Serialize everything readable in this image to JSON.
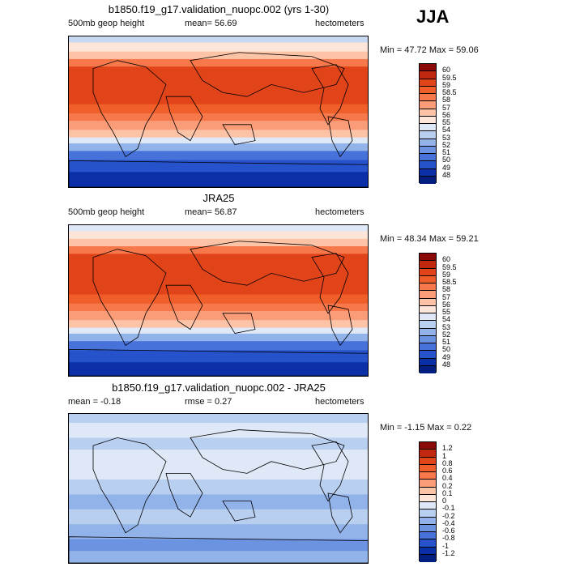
{
  "season": "JJA",
  "chart_data": [
    {
      "type": "heatmap",
      "title": "b1850.f19_g17.validation_nuopc.002 (yrs 1-30)",
      "left_label": "500mb geop height",
      "mean_label": "mean=  56.69",
      "units": "hectometers",
      "minmax": "Min =  47.72 Max =  59.06",
      "min": 47.72,
      "max": 59.06,
      "mean": 56.69,
      "levels": [
        "60",
        "59.5",
        "59",
        "58.5",
        "58",
        "57",
        "56",
        "55",
        "54",
        "53",
        "52",
        "51",
        "50",
        "49",
        "48"
      ],
      "colors": [
        "#8a0a0a",
        "#c1280f",
        "#e2441a",
        "#f05e2a",
        "#f7784a",
        "#fb9c78",
        "#fdc3a7",
        "#fde6d9",
        "#dfe8f6",
        "#b9cff0",
        "#92b3ea",
        "#6b93e2",
        "#4672da",
        "#2652cc",
        "#0a2fa6",
        "#001d80"
      ],
      "bands": [
        {
          "color": "#c9d8f2",
          "h": 0.04
        },
        {
          "color": "#fde6d9",
          "h": 0.06
        },
        {
          "color": "#fdc3a7",
          "h": 0.05
        },
        {
          "color": "#f7784a",
          "h": 0.05
        },
        {
          "color": "#e2441a",
          "h": 0.25
        },
        {
          "color": "#f05e2a",
          "h": 0.06
        },
        {
          "color": "#f7784a",
          "h": 0.05
        },
        {
          "color": "#fb9c78",
          "h": 0.06
        },
        {
          "color": "#fdc3a7",
          "h": 0.05
        },
        {
          "color": "#dfe8f6",
          "h": 0.04
        },
        {
          "color": "#92b3ea",
          "h": 0.05
        },
        {
          "color": "#4672da",
          "h": 0.06
        },
        {
          "color": "#2652cc",
          "h": 0.08
        },
        {
          "color": "#0a2fa6",
          "h": 0.1
        }
      ]
    },
    {
      "type": "heatmap",
      "title": "JRA25",
      "left_label": "500mb geop height",
      "mean_label": "mean=  56.87",
      "units": "hectometers",
      "minmax": "Min =  48.34 Max =  59.21",
      "min": 48.34,
      "max": 59.21,
      "mean": 56.87,
      "levels": [
        "60",
        "59.5",
        "59",
        "58.5",
        "58",
        "57",
        "56",
        "55",
        "54",
        "53",
        "52",
        "51",
        "50",
        "49",
        "48"
      ],
      "colors": [
        "#8a0a0a",
        "#c1280f",
        "#e2441a",
        "#f05e2a",
        "#f7784a",
        "#fb9c78",
        "#fdc3a7",
        "#fde6d9",
        "#dfe8f6",
        "#b9cff0",
        "#92b3ea",
        "#6b93e2",
        "#4672da",
        "#2652cc",
        "#0a2fa6",
        "#001d80"
      ],
      "bands": [
        {
          "color": "#dfe8f6",
          "h": 0.04
        },
        {
          "color": "#fde6d9",
          "h": 0.05
        },
        {
          "color": "#fdc3a7",
          "h": 0.05
        },
        {
          "color": "#f7784a",
          "h": 0.05
        },
        {
          "color": "#e2441a",
          "h": 0.27
        },
        {
          "color": "#f05e2a",
          "h": 0.06
        },
        {
          "color": "#f7784a",
          "h": 0.05
        },
        {
          "color": "#fb9c78",
          "h": 0.06
        },
        {
          "color": "#fdc3a7",
          "h": 0.05
        },
        {
          "color": "#dfe8f6",
          "h": 0.04
        },
        {
          "color": "#92b3ea",
          "h": 0.05
        },
        {
          "color": "#4672da",
          "h": 0.06
        },
        {
          "color": "#2652cc",
          "h": 0.08
        },
        {
          "color": "#0a2fa6",
          "h": 0.09
        }
      ]
    },
    {
      "type": "heatmap",
      "title": "b1850.f19_g17.validation_nuopc.002 - JRA25",
      "left_label": "mean =  -0.18",
      "mean_label": "rmse =   0.27",
      "units": "hectometers",
      "minmax": "Min =  -1.15 Max =   0.22",
      "min": -1.15,
      "max": 0.22,
      "mean": -0.18,
      "rmse": 0.27,
      "levels": [
        "1.2",
        "1",
        "0.8",
        "0.6",
        "0.4",
        "0.2",
        "0.1",
        "0",
        "-0.1",
        "-0.2",
        "-0.4",
        "-0.6",
        "-0.8",
        "-1",
        "-1.2"
      ],
      "colors": [
        "#8a0a0a",
        "#c1280f",
        "#e2441a",
        "#f05e2a",
        "#f7784a",
        "#fb9c78",
        "#fdc3a7",
        "#fde6d9",
        "#dfe8f6",
        "#b9cff0",
        "#92b3ea",
        "#6b93e2",
        "#4672da",
        "#2652cc",
        "#0a2fa6",
        "#001d80"
      ],
      "bands": [
        {
          "color": "#b9cff0",
          "h": 0.06
        },
        {
          "color": "#dfe8f6",
          "h": 0.1
        },
        {
          "color": "#b9cff0",
          "h": 0.08
        },
        {
          "color": "#dfe8f6",
          "h": 0.2
        },
        {
          "color": "#b9cff0",
          "h": 0.1
        },
        {
          "color": "#92b3ea",
          "h": 0.1
        },
        {
          "color": "#b9cff0",
          "h": 0.1
        },
        {
          "color": "#92b3ea",
          "h": 0.1
        },
        {
          "color": "#6b93e2",
          "h": 0.08
        },
        {
          "color": "#92b3ea",
          "h": 0.08
        }
      ]
    }
  ]
}
